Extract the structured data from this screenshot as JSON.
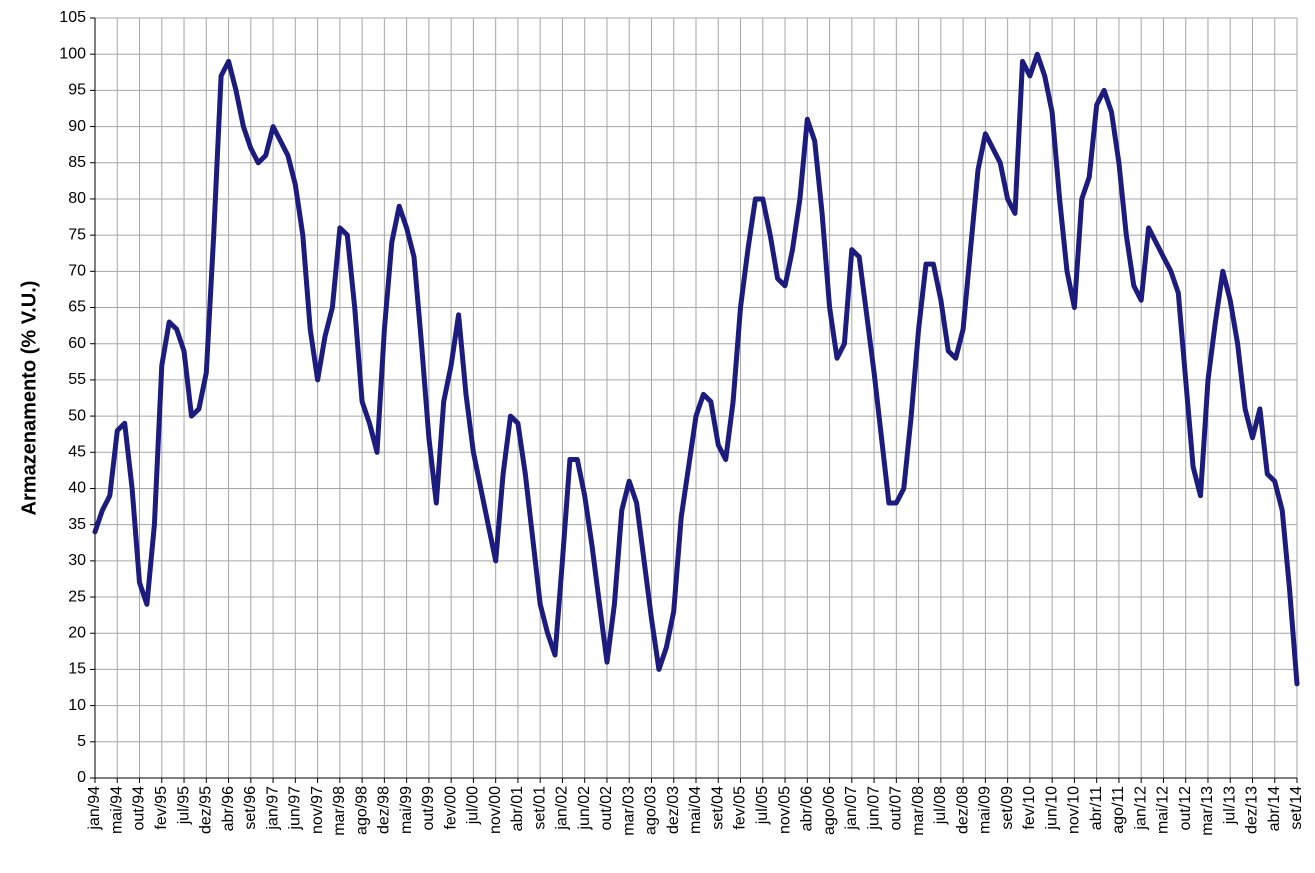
{
  "chart_data": {
    "type": "line",
    "ylabel": "Armazenamento (%  V.U.)",
    "categories": [
      "jan/94",
      null,
      null,
      "mai/94",
      null,
      null,
      "out/94",
      null,
      null,
      "fev/95",
      null,
      null,
      "jul/95",
      null,
      null,
      "dez/95",
      null,
      null,
      "abr/96",
      null,
      null,
      "set/96",
      null,
      null,
      "jan/97",
      null,
      null,
      "jun/97",
      null,
      null,
      "nov/97",
      null,
      null,
      "mar/98",
      null,
      null,
      "ago/98",
      null,
      null,
      "dez/98",
      null,
      null,
      "mai/99",
      null,
      null,
      "out/99",
      null,
      null,
      "fev/00",
      null,
      null,
      "jul/00",
      null,
      null,
      "nov/00",
      null,
      null,
      "abr/01",
      null,
      null,
      "set/01",
      null,
      null,
      "jan/02",
      null,
      null,
      "jun/02",
      null,
      null,
      "out/02",
      null,
      null,
      "mar/03",
      null,
      null,
      "ago/03",
      null,
      null,
      "dez/03",
      null,
      null,
      "mai/04",
      null,
      null,
      "set/04",
      null,
      null,
      "fev/05",
      null,
      null,
      "jul/05",
      null,
      null,
      "nov/05",
      null,
      null,
      "abr/06",
      null,
      null,
      "ago/06",
      null,
      null,
      "jan/07",
      null,
      null,
      "jun/07",
      null,
      null,
      "out/07",
      null,
      null,
      "mar/08",
      null,
      null,
      "jul/08",
      null,
      null,
      "dez/08",
      null,
      null,
      "mai/09",
      null,
      null,
      "set/09",
      null,
      null,
      "fev/10",
      null,
      null,
      "jun/10",
      null,
      null,
      "nov/10",
      null,
      null,
      "abr/11",
      null,
      null,
      "ago/11",
      null,
      null,
      "jan/12",
      null,
      null,
      "mai/12",
      null,
      null,
      "out/12",
      null,
      null,
      "mar/13",
      null,
      null,
      "jul/13",
      null,
      null,
      "dez/13",
      null,
      null,
      "abr/14",
      null,
      null,
      "set/14"
    ],
    "values": [
      34,
      37,
      39,
      48,
      49,
      40,
      27,
      24,
      35,
      57,
      63,
      62,
      59,
      50,
      51,
      56,
      75,
      97,
      99,
      95,
      90,
      87,
      85,
      86,
      90,
      88,
      86,
      82,
      75,
      62,
      55,
      61,
      65,
      76,
      75,
      65,
      52,
      49,
      45,
      62,
      74,
      79,
      76,
      72,
      60,
      47,
      38,
      52,
      57,
      64,
      53,
      45,
      40,
      35,
      30,
      42,
      50,
      49,
      42,
      33,
      24,
      20,
      17,
      30,
      44,
      44,
      39,
      32,
      24,
      16,
      24,
      37,
      41,
      38,
      30,
      22,
      15,
      18,
      23,
      36,
      43,
      50,
      53,
      52,
      46,
      44,
      52,
      65,
      73,
      80,
      80,
      75,
      69,
      68,
      73,
      80,
      91,
      88,
      78,
      65,
      58,
      60,
      73,
      72,
      64,
      56,
      47,
      38,
      38,
      40,
      50,
      62,
      71,
      71,
      66,
      59,
      58,
      62,
      73,
      84,
      89,
      87,
      85,
      80,
      78,
      99,
      97,
      100,
      97,
      92,
      80,
      70,
      65,
      80,
      83,
      93,
      95,
      92,
      85,
      75,
      68,
      66,
      76,
      74,
      72,
      70,
      67,
      55,
      43,
      39,
      55,
      63,
      70,
      66,
      60,
      51,
      47,
      51,
      42,
      41,
      37,
      26,
      13
    ],
    "color": "#1c1c7e",
    "ylim": [
      0,
      105
    ],
    "yticks": [
      0,
      5,
      10,
      15,
      20,
      25,
      30,
      35,
      40,
      45,
      50,
      55,
      60,
      65,
      70,
      75,
      80,
      85,
      90,
      95,
      100,
      105
    ],
    "grid": true
  }
}
